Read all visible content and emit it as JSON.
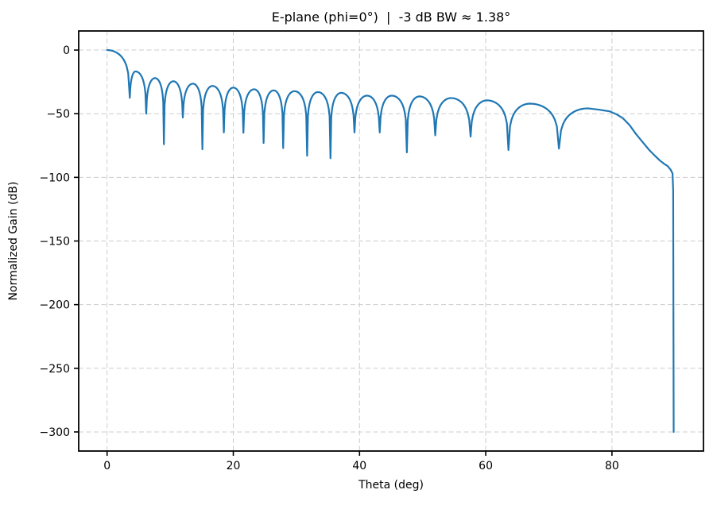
{
  "chart_data": {
    "type": "line",
    "title": "E-plane (phi=0°)  |  -3 dB BW ≈ 1.38°",
    "xlabel": "Theta (deg)",
    "ylabel": "Normalized Gain (dB)",
    "xlim": [
      -4.5,
      94.5
    ],
    "ylim": [
      -315,
      15
    ],
    "xticks": [
      0,
      20,
      40,
      60,
      80
    ],
    "yticks": [
      0,
      -50,
      -100,
      -150,
      -200,
      -250,
      -300
    ],
    "grid": true,
    "legend_position": "none",
    "line_color": "#1f77b4",
    "grid_color": "#cccccc",
    "background_color": "#ffffff",
    "series": {
      "name": "normalized-gain-e-plane",
      "main_lobe": {
        "peak": [
          0,
          0
        ],
        "to": [
          3.6,
          -37.5
        ]
      },
      "lobes": [
        {
          "from": [
            3.6,
            -37.5
          ],
          "peak": [
            4.5,
            -16.8
          ],
          "to": [
            6.2,
            -50
          ]
        },
        {
          "from": [
            6.2,
            -50
          ],
          "peak": [
            7.6,
            -22.0
          ],
          "to": [
            9.0,
            -74
          ]
        },
        {
          "from": [
            9.0,
            -74
          ],
          "peak": [
            10.5,
            -24.5
          ],
          "to": [
            12.0,
            -53
          ]
        },
        {
          "from": [
            12.0,
            -53
          ],
          "peak": [
            13.6,
            -26.4
          ],
          "to": [
            15.1,
            -78
          ]
        },
        {
          "from": [
            15.1,
            -78
          ],
          "peak": [
            16.7,
            -28.2
          ],
          "to": [
            18.5,
            -64.7
          ]
        },
        {
          "from": [
            18.5,
            -64.7
          ],
          "peak": [
            20.0,
            -29.5
          ],
          "to": [
            21.6,
            -65
          ]
        },
        {
          "from": [
            21.6,
            -65
          ],
          "peak": [
            23.3,
            -30.8
          ],
          "to": [
            24.8,
            -73
          ]
        },
        {
          "from": [
            24.8,
            -73
          ],
          "peak": [
            26.4,
            -31.7
          ],
          "to": [
            27.9,
            -77
          ]
        },
        {
          "from": [
            27.9,
            -77
          ],
          "peak": [
            29.7,
            -32.3
          ],
          "to": [
            31.7,
            -83
          ]
        },
        {
          "from": [
            31.7,
            -83
          ],
          "peak": [
            33.4,
            -33.0
          ],
          "to": [
            35.4,
            -85
          ]
        },
        {
          "from": [
            35.4,
            -85
          ],
          "peak": [
            37.1,
            -33.6
          ],
          "to": [
            39.2,
            -64.7
          ]
        },
        {
          "from": [
            39.2,
            -64.7
          ],
          "peak": [
            41.2,
            -35.8
          ],
          "to": [
            43.2,
            -64.7
          ]
        },
        {
          "from": [
            43.2,
            -64.7
          ],
          "peak": [
            45.1,
            -35.8
          ],
          "to": [
            47.5,
            -80.4
          ]
        },
        {
          "from": [
            47.5,
            -80.4
          ],
          "peak": [
            49.5,
            -36.4
          ],
          "to": [
            52.0,
            -67
          ]
        },
        {
          "from": [
            52.0,
            -67
          ],
          "peak": [
            54.5,
            -37.7
          ],
          "to": [
            57.6,
            -68
          ]
        },
        {
          "from": [
            57.6,
            -68
          ],
          "peak": [
            60.2,
            -39.5
          ],
          "to": [
            63.6,
            -78.5
          ]
        },
        {
          "from": [
            63.6,
            -78.5
          ],
          "peak": [
            67.0,
            -42.1
          ],
          "to": [
            71.6,
            -77.4
          ]
        }
      ],
      "final_lobe": {
        "from": [
          71.6,
          -77.4
        ],
        "peak": [
          76.2,
          -45.8
        ]
      },
      "tail": [
        [
          77.9,
          -46.8
        ],
        [
          79.6,
          -48.1
        ],
        [
          80.7,
          -50.4
        ],
        [
          81.7,
          -53.4
        ],
        [
          82.8,
          -59.0
        ],
        [
          83.8,
          -65.9
        ],
        [
          84.9,
          -72.5
        ],
        [
          85.9,
          -78.5
        ],
        [
          86.8,
          -83.0
        ],
        [
          87.6,
          -86.8
        ],
        [
          88.3,
          -89.5
        ],
        [
          88.8,
          -91.0
        ],
        [
          89.3,
          -94.0
        ],
        [
          89.6,
          -97.0
        ],
        [
          89.7,
          -110.0
        ],
        [
          89.78,
          -300.0
        ]
      ]
    }
  }
}
